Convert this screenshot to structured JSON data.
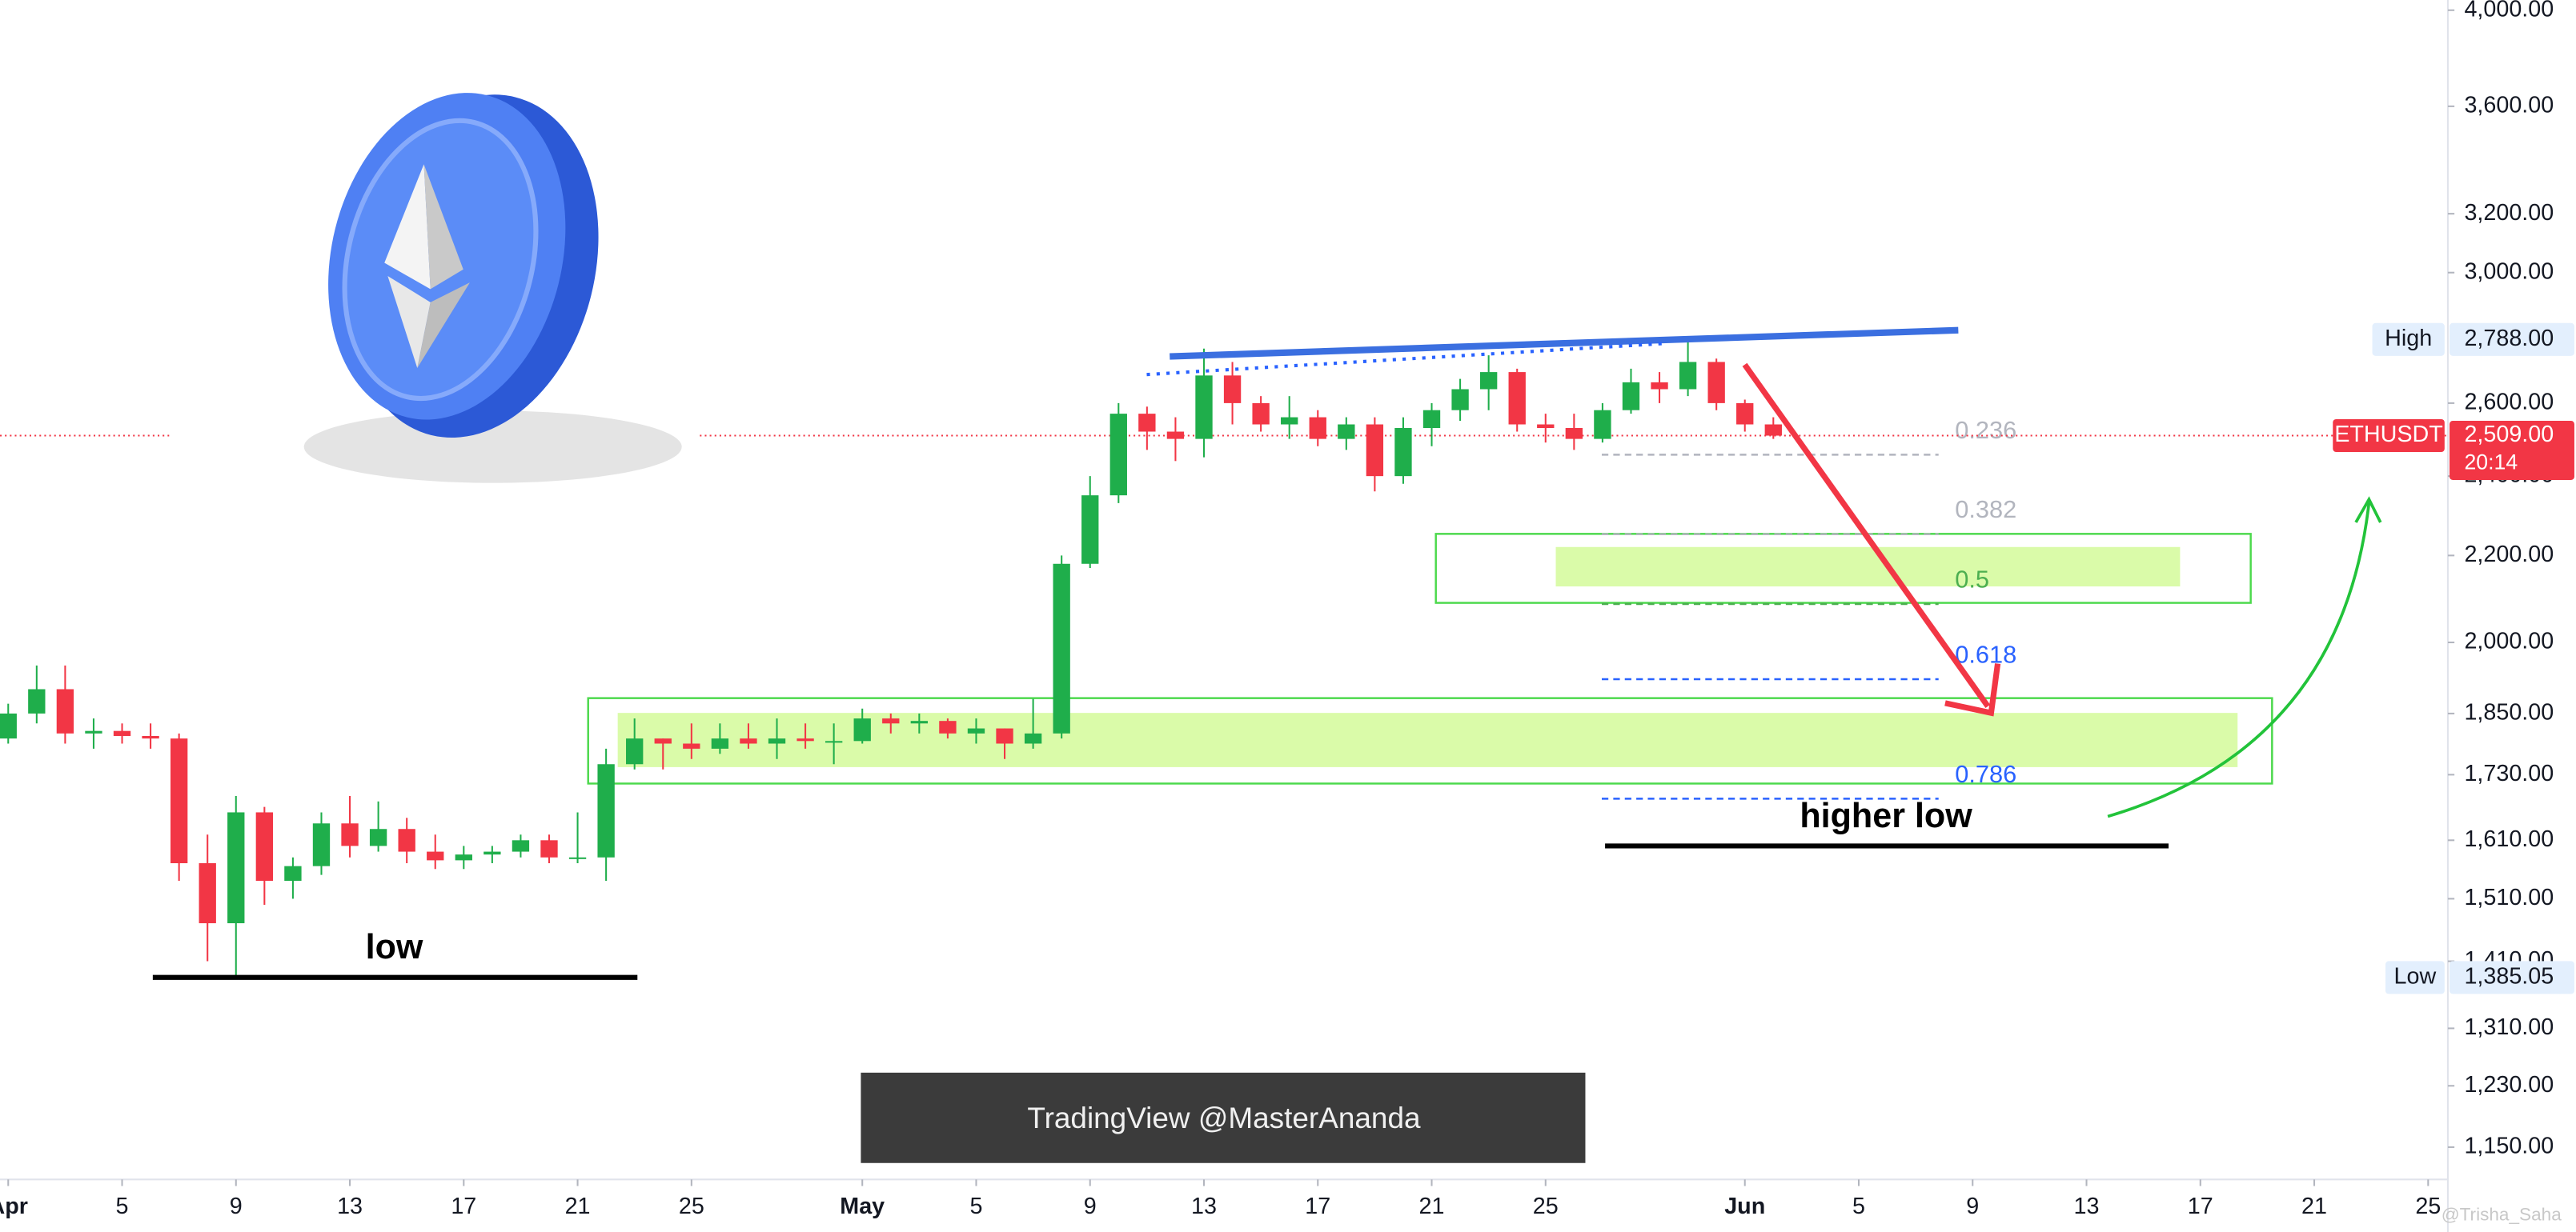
{
  "chart_data": {
    "type": "candlestick",
    "symbol": "ETHUSDT",
    "x": [
      "Apr 1",
      "Apr 2",
      "Apr 3",
      "Apr 4",
      "Apr 5",
      "Apr 6",
      "Apr 7",
      "Apr 8",
      "Apr 9",
      "Apr 10",
      "Apr 11",
      "Apr 12",
      "Apr 13",
      "Apr 14",
      "Apr 15",
      "Apr 16",
      "Apr 17",
      "Apr 18",
      "Apr 19",
      "Apr 20",
      "Apr 21",
      "Apr 22",
      "Apr 23",
      "Apr 24",
      "Apr 25",
      "Apr 26",
      "Apr 27",
      "Apr 28",
      "Apr 29",
      "Apr 30",
      "May 1",
      "May 2",
      "May 3",
      "May 4",
      "May 5",
      "May 6",
      "May 7",
      "May 8",
      "May 9",
      "May 10",
      "May 11",
      "May 12",
      "May 13",
      "May 14",
      "May 15",
      "May 16",
      "May 17",
      "May 18",
      "May 19",
      "May 20",
      "May 21",
      "May 22",
      "May 23",
      "May 24",
      "May 25",
      "May 26",
      "May 27",
      "May 28",
      "May 29",
      "May 30",
      "May 31",
      "Jun 1",
      "Jun 2"
    ],
    "open": [
      1800,
      1850,
      1900,
      1810,
      1815,
      1805,
      1800,
      1570,
      1470,
      1660,
      1540,
      1565,
      1640,
      1600,
      1630,
      1590,
      1575,
      1585,
      1590,
      1610,
      1580,
      1580,
      1750,
      1800,
      1790,
      1780,
      1800,
      1790,
      1800,
      1795,
      1795,
      1840,
      1830,
      1835,
      1810,
      1820,
      1790,
      1810,
      2180,
      2350,
      2570,
      2520,
      2500,
      2680,
      2600,
      2540,
      2560,
      2500,
      2540,
      2400,
      2530,
      2580,
      2640,
      2690,
      2540,
      2530,
      2500,
      2580,
      2660,
      2640,
      2720,
      2600,
      2540
    ],
    "high": [
      1870,
      1950,
      1950,
      1840,
      1830,
      1830,
      1810,
      1620,
      1690,
      1670,
      1580,
      1660,
      1690,
      1680,
      1650,
      1620,
      1600,
      1600,
      1620,
      1620,
      1660,
      1780,
      1840,
      1800,
      1830,
      1830,
      1830,
      1840,
      1830,
      1830,
      1860,
      1850,
      1850,
      1840,
      1840,
      1820,
      1880,
      2200,
      2400,
      2600,
      2590,
      2560,
      2760,
      2720,
      2620,
      2620,
      2580,
      2560,
      2560,
      2560,
      2600,
      2670,
      2740,
      2700,
      2570,
      2570,
      2600,
      2700,
      2690,
      2788,
      2730,
      2610,
      2560
    ],
    "low": [
      1790,
      1830,
      1790,
      1780,
      1790,
      1780,
      1540,
      1410,
      1385.05,
      1500,
      1510,
      1550,
      1580,
      1590,
      1570,
      1560,
      1560,
      1570,
      1580,
      1570,
      1570,
      1540,
      1740,
      1740,
      1760,
      1770,
      1780,
      1760,
      1780,
      1750,
      1790,
      1810,
      1810,
      1800,
      1790,
      1760,
      1780,
      1800,
      2170,
      2330,
      2470,
      2440,
      2450,
      2540,
      2520,
      2500,
      2480,
      2470,
      2360,
      2380,
      2480,
      2550,
      2580,
      2520,
      2490,
      2470,
      2490,
      2570,
      2600,
      2620,
      2580,
      2520,
      2500
    ],
    "close": [
      1850,
      1900,
      1810,
      1815,
      1805,
      1800,
      1570,
      1470,
      1660,
      1540,
      1565,
      1640,
      1600,
      1630,
      1590,
      1575,
      1585,
      1590,
      1610,
      1580,
      1580,
      1750,
      1800,
      1790,
      1780,
      1800,
      1790,
      1800,
      1795,
      1795,
      1840,
      1830,
      1835,
      1810,
      1820,
      1790,
      1810,
      2180,
      2350,
      2570,
      2520,
      2500,
      2680,
      2600,
      2540,
      2560,
      2500,
      2540,
      2400,
      2530,
      2580,
      2640,
      2690,
      2540,
      2530,
      2500,
      2580,
      2660,
      2640,
      2720,
      2600,
      2540,
      2509
    ],
    "up_color": "#1fae4b",
    "down_color": "#f23645",
    "log_scale": true,
    "grid": false,
    "xlim": [
      "Apr 1",
      "Jun 25"
    ],
    "xticks": [
      {
        "value": "Apr 1",
        "label": "Apr"
      },
      {
        "value": "Apr 5",
        "label": "5"
      },
      {
        "value": "Apr 9",
        "label": "9"
      },
      {
        "value": "Apr 13",
        "label": "13"
      },
      {
        "value": "Apr 17",
        "label": "17"
      },
      {
        "value": "Apr 21",
        "label": "21"
      },
      {
        "value": "Apr 25",
        "label": "25"
      },
      {
        "value": "May 1",
        "label": "May"
      },
      {
        "value": "May 5",
        "label": "5"
      },
      {
        "value": "May 9",
        "label": "9"
      },
      {
        "value": "May 13",
        "label": "13"
      },
      {
        "value": "May 17",
        "label": "17"
      },
      {
        "value": "May 21",
        "label": "21"
      },
      {
        "value": "May 25",
        "label": "25"
      },
      {
        "value": "Jun 1",
        "label": "Jun"
      },
      {
        "value": "Jun 5",
        "label": "5"
      },
      {
        "value": "Jun 9",
        "label": "9"
      },
      {
        "value": "Jun 13",
        "label": "13"
      },
      {
        "value": "Jun 17",
        "label": "17"
      },
      {
        "value": "Jun 21",
        "label": "21"
      },
      {
        "value": "Jun 25",
        "label": "25"
      }
    ],
    "ylim": [
      1110,
      4045
    ],
    "yticks": [
      {
        "value": 1150,
        "label": "1,150.00"
      },
      {
        "value": 1230,
        "label": "1,230.00"
      },
      {
        "value": 1310,
        "label": "1,310.00"
      },
      {
        "value": 1410,
        "label": "1,410.00"
      },
      {
        "value": 1510,
        "label": "1,510.00"
      },
      {
        "value": 1610,
        "label": "1,610.00"
      },
      {
        "value": 1730,
        "label": "1,730.00"
      },
      {
        "value": 1850,
        "label": "1,850.00"
      },
      {
        "value": 2000,
        "label": "2,000.00"
      },
      {
        "value": 2200,
        "label": "2,200.00"
      },
      {
        "value": 2400,
        "label": "2,400.00"
      },
      {
        "value": 2600,
        "label": "2,600.00"
      },
      {
        "value": 3000,
        "label": "3,000.00"
      },
      {
        "value": 3200,
        "label": "3,200.00"
      },
      {
        "value": 3600,
        "label": "3,600.00"
      },
      {
        "value": 4000,
        "label": "4,000.00"
      }
    ],
    "price_markers": [
      {
        "name": "High",
        "value": 2788,
        "value_label": "2,788.00",
        "color": "#e3effd"
      },
      {
        "name": "ETHUSDT",
        "value": 2509,
        "value_label": "2,509.00",
        "countdown": "20:14",
        "color": "#f23645"
      },
      {
        "name": "Low",
        "value": 1385.05,
        "value_label": "1,385.05",
        "color": "#e3effd"
      }
    ],
    "fib_levels": [
      {
        "label": "0.236",
        "value": 2457,
        "color": "#b2b5be"
      },
      {
        "label": "0.382",
        "value": 2252,
        "color": "#b2b5be"
      },
      {
        "label": "0.5",
        "value": 2086,
        "color": "#4caf50"
      },
      {
        "label": "0.618",
        "value": 1921,
        "color": "#2962ff"
      },
      {
        "label": "0.786",
        "value": 1685,
        "color": "#2962ff"
      }
    ],
    "annotations": [
      "low",
      "higher low"
    ],
    "watermark": "TradingView @MasterAnanda",
    "credit": "@Trisha_Saha"
  }
}
